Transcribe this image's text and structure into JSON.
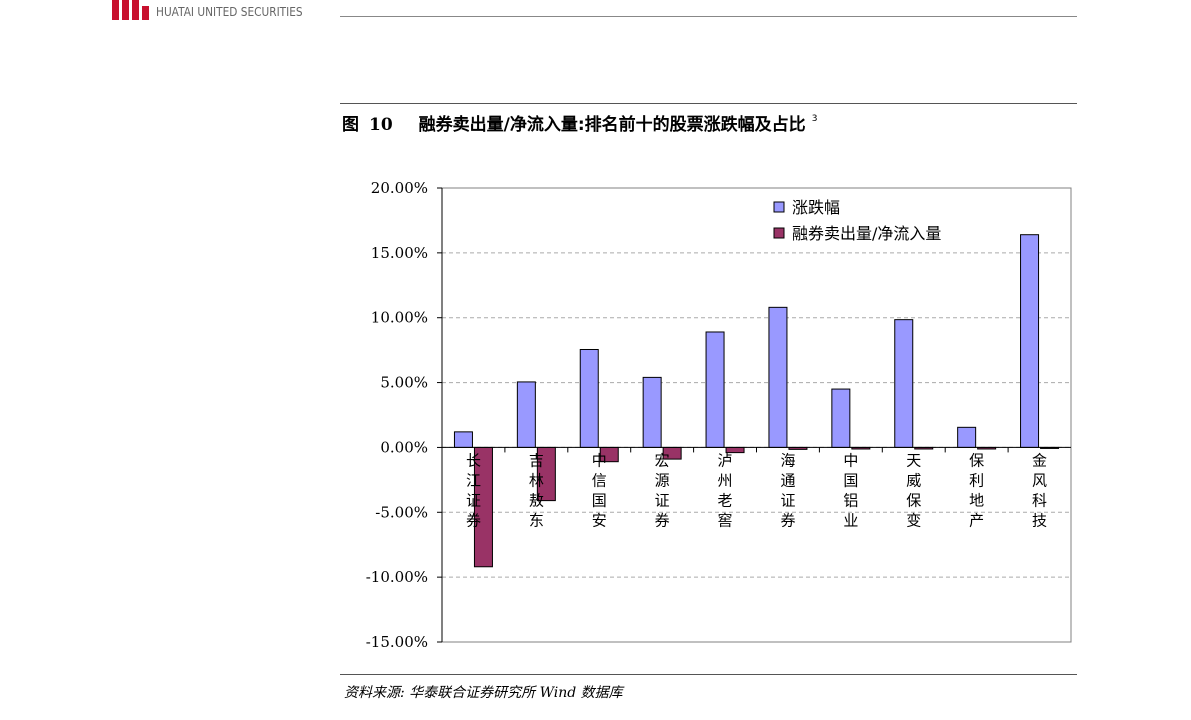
{
  "header": {
    "logo_text": "HUATAI UNITED SECURITIES",
    "logo_icon": "huatai-logo-icon"
  },
  "figure": {
    "label": "图",
    "number": "10",
    "title": "融券卖出量/净流入量:排名前十的股票涨跌幅及占比",
    "footnote_mark": "3"
  },
  "source": {
    "text": "资料来源: 华泰联合证券研究所 Wind 数据库"
  },
  "colors": {
    "series1": "#9999ff",
    "series2": "#993366",
    "grid": "#aaaaaa",
    "axis": "#808080"
  },
  "chart_data": {
    "type": "bar",
    "categories": [
      "长江证券",
      "吉林敖东",
      "中信国安",
      "宏源证券",
      "泸州老窖",
      "海通证券",
      "中国铝业",
      "天威保变",
      "保利地产",
      "金风科技"
    ],
    "series": [
      {
        "name": "涨跌幅",
        "values": [
          1.2,
          5.05,
          7.55,
          5.4,
          8.9,
          10.8,
          4.5,
          9.85,
          1.55,
          16.4
        ]
      },
      {
        "name": "融券卖出量/净流入量",
        "values": [
          -9.2,
          -4.1,
          -1.1,
          -0.9,
          -0.4,
          -0.15,
          -0.12,
          -0.12,
          -0.12,
          0
        ]
      }
    ],
    "yticks": [
      "20.00%",
      "15.00%",
      "10.00%",
      "5.00%",
      "0.00%",
      "-5.00%",
      "-10.00%",
      "-15.00%"
    ],
    "ylim": [
      -15,
      20
    ],
    "ystep": 5,
    "grid": true,
    "legend_position": "top-right"
  }
}
